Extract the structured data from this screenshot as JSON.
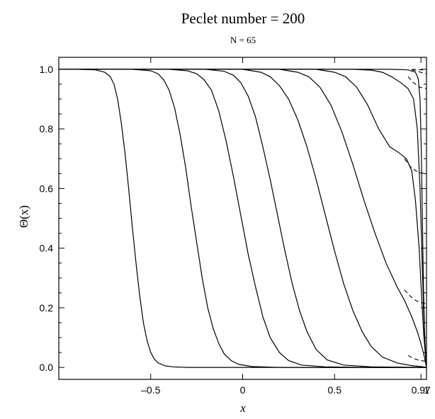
{
  "chart_data": {
    "type": "line",
    "title": "Peclet number = 200",
    "subtitle": "N = 65",
    "xlabel": "x",
    "ylabel": "Θ(x)",
    "xlim": [
      -1,
      1
    ],
    "ylim": [
      -0.04,
      1.04
    ],
    "x_ticks": [
      {
        "value": -0.5,
        "label": "–0.5"
      },
      {
        "value": 0,
        "label": "0"
      },
      {
        "value": 0.5,
        "label": "0.5"
      },
      {
        "value": 0.97,
        "label": "0.97"
      },
      {
        "value": 1,
        "label": "1"
      }
    ],
    "y_ticks": [
      {
        "value": 0.0,
        "label": "0.0"
      },
      {
        "value": 0.2,
        "label": "0.2"
      },
      {
        "value": 0.4,
        "label": "0.4"
      },
      {
        "value": 0.6,
        "label": "0.6"
      },
      {
        "value": 0.8,
        "label": "0.8"
      },
      {
        "value": 1.0,
        "label": "1.0"
      }
    ],
    "grid": false,
    "series": [
      {
        "style": "solid",
        "x": [
          -1.0,
          -0.9,
          -0.8,
          -0.75,
          -0.72,
          -0.7,
          -0.68,
          -0.66,
          -0.64,
          -0.62,
          -0.6,
          -0.58,
          -0.56,
          -0.54,
          -0.52,
          -0.5,
          -0.48,
          -0.46,
          -0.42,
          -0.38,
          -0.3,
          -0.1,
          0.2,
          0.6,
          1.0
        ],
        "y": [
          1.0,
          1.0,
          0.998,
          0.99,
          0.975,
          0.95,
          0.9,
          0.82,
          0.72,
          0.6,
          0.47,
          0.35,
          0.24,
          0.15,
          0.09,
          0.05,
          0.028,
          0.015,
          0.005,
          0.002,
          0.0,
          0.0,
          0.0,
          0.0,
          0.0
        ]
      },
      {
        "style": "solid",
        "x": [
          -1.0,
          -0.6,
          -0.5,
          -0.46,
          -0.43,
          -0.4,
          -0.37,
          -0.34,
          -0.31,
          -0.28,
          -0.25,
          -0.22,
          -0.19,
          -0.16,
          -0.13,
          -0.1,
          -0.06,
          -0.02,
          0.05,
          0.2,
          0.5,
          1.0
        ],
        "y": [
          1.0,
          1.0,
          0.995,
          0.985,
          0.965,
          0.93,
          0.87,
          0.78,
          0.67,
          0.54,
          0.42,
          0.3,
          0.2,
          0.13,
          0.08,
          0.045,
          0.022,
          0.01,
          0.003,
          0.0,
          0.0,
          0.0
        ]
      },
      {
        "style": "solid",
        "x": [
          -1.0,
          -0.4,
          -0.3,
          -0.25,
          -0.21,
          -0.17,
          -0.13,
          -0.09,
          -0.05,
          -0.01,
          0.03,
          0.07,
          0.11,
          0.15,
          0.2,
          0.25,
          0.32,
          0.45,
          0.7,
          1.0
        ],
        "y": [
          1.0,
          1.0,
          0.995,
          0.985,
          0.965,
          0.93,
          0.86,
          0.76,
          0.64,
          0.51,
          0.38,
          0.27,
          0.17,
          0.1,
          0.05,
          0.023,
          0.008,
          0.002,
          0.0,
          0.0
        ]
      },
      {
        "style": "solid",
        "x": [
          -1.0,
          -0.2,
          -0.1,
          -0.05,
          -0.01,
          0.03,
          0.07,
          0.11,
          0.15,
          0.19,
          0.23,
          0.27,
          0.31,
          0.35,
          0.4,
          0.46,
          0.55,
          0.7,
          1.0
        ],
        "y": [
          1.0,
          1.0,
          0.993,
          0.98,
          0.955,
          0.91,
          0.84,
          0.74,
          0.63,
          0.51,
          0.39,
          0.28,
          0.19,
          0.12,
          0.06,
          0.025,
          0.008,
          0.002,
          0.0
        ]
      },
      {
        "style": "solid",
        "x": [
          -1.0,
          0.0,
          0.1,
          0.15,
          0.2,
          0.25,
          0.3,
          0.35,
          0.4,
          0.45,
          0.5,
          0.55,
          0.6,
          0.65,
          0.7,
          0.76,
          0.84,
          0.92,
          0.97,
          1.0
        ],
        "y": [
          1.0,
          1.0,
          0.99,
          0.975,
          0.945,
          0.9,
          0.83,
          0.74,
          0.63,
          0.51,
          0.39,
          0.28,
          0.19,
          0.12,
          0.07,
          0.035,
          0.015,
          0.006,
          0.003,
          0.0
        ]
      },
      {
        "style": "solid",
        "x": [
          -1.0,
          0.2,
          0.3,
          0.36,
          0.42,
          0.48,
          0.54,
          0.6,
          0.66,
          0.72,
          0.78,
          0.84,
          0.88,
          0.92,
          0.95,
          0.97,
          0.985,
          1.0
        ],
        "y": [
          1.0,
          1.0,
          0.99,
          0.975,
          0.94,
          0.88,
          0.79,
          0.68,
          0.56,
          0.45,
          0.35,
          0.27,
          0.225,
          0.17,
          0.12,
          0.08,
          0.045,
          0.0
        ]
      },
      {
        "style": "solid",
        "x": [
          -1.0,
          0.4,
          0.5,
          0.56,
          0.62,
          0.68,
          0.74,
          0.8,
          0.85,
          0.89,
          0.92,
          0.94,
          0.96,
          0.975,
          0.985,
          0.993,
          1.0
        ],
        "y": [
          1.0,
          1.0,
          0.99,
          0.975,
          0.94,
          0.88,
          0.8,
          0.74,
          0.72,
          0.7,
          0.66,
          0.56,
          0.4,
          0.22,
          0.11,
          0.05,
          0.0
        ]
      },
      {
        "style": "solid",
        "x": [
          -1.0,
          0.6,
          0.7,
          0.76,
          0.81,
          0.86,
          0.9,
          0.93,
          0.95,
          0.965,
          0.975,
          0.985,
          0.993,
          1.0
        ],
        "y": [
          1.0,
          1.0,
          0.997,
          0.99,
          0.975,
          0.955,
          0.935,
          0.9,
          0.8,
          0.6,
          0.38,
          0.18,
          0.07,
          0.0
        ]
      },
      {
        "style": "solid",
        "x": [
          -1.0,
          0.8,
          0.9,
          0.94,
          0.955,
          0.965,
          0.972,
          0.978,
          0.984,
          0.99,
          0.995,
          1.0
        ],
        "y": [
          1.0,
          1.0,
          0.998,
          0.99,
          0.97,
          0.9,
          0.72,
          0.48,
          0.26,
          0.11,
          0.04,
          0.0
        ]
      },
      {
        "style": "dashed",
        "x": [
          0.92,
          0.95,
          0.98,
          1.0
        ],
        "y": [
          1.0,
          0.999,
          0.998,
          0.997
        ]
      },
      {
        "style": "dashed",
        "x": [
          0.92,
          0.95,
          0.98,
          1.0
        ],
        "y": [
          0.998,
          0.993,
          0.988,
          0.985
        ]
      },
      {
        "style": "dashed",
        "x": [
          0.9,
          0.93,
          0.96,
          1.0
        ],
        "y": [
          0.975,
          0.955,
          0.94,
          0.935
        ]
      },
      {
        "style": "dashed",
        "x": [
          0.88,
          0.91,
          0.94,
          0.97,
          1.0
        ],
        "y": [
          0.7,
          0.675,
          0.66,
          0.652,
          0.65
        ]
      },
      {
        "style": "dashed",
        "x": [
          0.88,
          0.91,
          0.94,
          0.97,
          1.0
        ],
        "y": [
          0.26,
          0.24,
          0.225,
          0.217,
          0.215
        ]
      },
      {
        "style": "dashed",
        "x": [
          0.9,
          0.93,
          0.96,
          1.0
        ],
        "y": [
          0.04,
          0.03,
          0.024,
          0.02
        ]
      }
    ]
  }
}
